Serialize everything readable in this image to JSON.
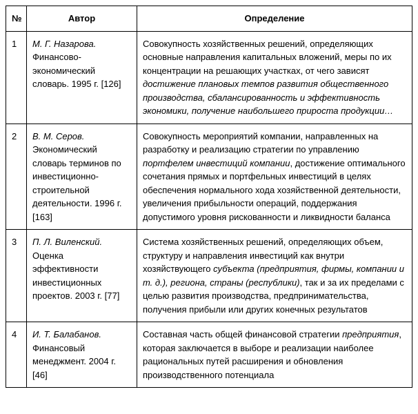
{
  "table": {
    "headers": {
      "num": "№",
      "author": "Автор",
      "definition": "Определение"
    },
    "rows": [
      {
        "num": "1",
        "author_name": "М. Г. Назарова.",
        "author_rest": " Финансово-экономический словарь. 1995 г. [126]",
        "def_pre": "Совокупность хозяйственных решений, определяющих основные направления капитальных вложений, меры по их концентрации на решающих участках, от чего зависят ",
        "def_em": "достижение плановых темпов развития общественного производства, сбалансированность и эффективность экономики, получение наибольшего прироста продукции…",
        "def_post": ""
      },
      {
        "num": "2",
        "author_name": "В. М. Серов.",
        "author_rest": " Экономический словарь терминов по инвестиционно-строительной деятельности. 1996 г. [163]",
        "def_pre": "Совокупность мероприятий компании, направленных на разработку и реализацию стратегии по управлению ",
        "def_em": "портфелем инвестиций компании",
        "def_post": ", достижение оптимального сочетания прямых и портфельных инвестиций в целях обеспечения нормального хода хозяйственной деятельности, увеличения прибыльности операций, поддержания допустимого уровня рискованности и ликвидности баланса"
      },
      {
        "num": "3",
        "author_name": "П. Л. Виленский.",
        "author_rest": " Оценка эффективности инвестиционных проектов. 2003 г. [77]",
        "def_pre": "Система хозяйственных решений, определяющих объем, структуру и направления инвестиций как внутри хозяйствующего ",
        "def_em": "субъекта (предприятия, фирмы, компании и т. д.), региона, страны (республики)",
        "def_post": ", так и за их пределами с целью развития производства, предпринимательства, получения прибыли или других конечных результатов"
      },
      {
        "num": "4",
        "author_name": "И. Т. Балабанов.",
        "author_rest": " Финансовый менеджмент. 2004 г. [46]",
        "def_pre": "Составная часть общей финансовой стратегии ",
        "def_em": "предприятия",
        "def_post": ", которая заключается в выборе и реализации наиболее рациональных путей расширения и обновления производственного потенциала"
      }
    ]
  }
}
